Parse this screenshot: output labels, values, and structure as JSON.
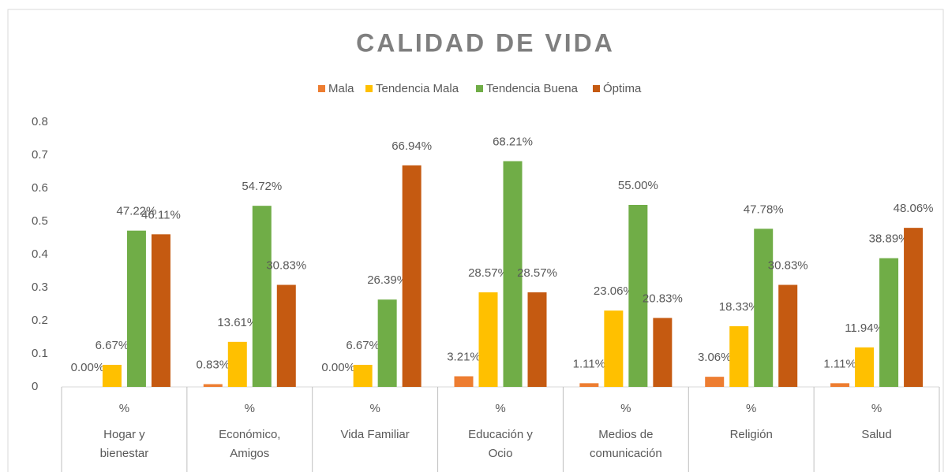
{
  "chart_data": {
    "type": "bar",
    "title": "CALIDAD DE VIDA",
    "categories": [
      "Hogar y bienestar",
      "Económico, Amigos",
      "Vida Familiar",
      "Educación y Ocio",
      "Medios de comunicación",
      "Religión",
      "Salud"
    ],
    "category_sublabels": [
      "%",
      "%",
      "%",
      "%",
      "%",
      "%",
      "%"
    ],
    "series": [
      {
        "name": "Mala",
        "color": "#ed7d31",
        "values": [
          0,
          0.0083,
          0,
          0.0321,
          0.0111,
          0.0306,
          0.0111
        ],
        "value_labels": [
          "0.00%",
          "0.83%",
          "0.00%",
          "3.21%",
          "1.11%",
          "3.06%",
          "1.11%"
        ]
      },
      {
        "name": "Tendencia Mala",
        "color": "#ffc000",
        "values": [
          0.0667,
          0.1361,
          0.0667,
          0.2857,
          0.2306,
          0.1833,
          0.1194
        ],
        "value_labels": [
          "6.67%",
          "13.61%",
          "6.67%",
          "28.57%",
          "23.06%",
          "18.33%",
          "11.94%"
        ]
      },
      {
        "name": "Tendencia Buena",
        "color": "#70ad47",
        "values": [
          0.4722,
          0.5472,
          0.2639,
          0.6821,
          0.55,
          0.4778,
          0.3889
        ],
        "value_labels": [
          "47.22%",
          "54.72%",
          "26.39%",
          "68.21%",
          "55.00%",
          "47.78%",
          "38.89%"
        ]
      },
      {
        "name": "Óptima",
        "color": "#c55a11",
        "values": [
          0.4611,
          0.3083,
          0.6694,
          0.2857,
          0.2083,
          0.3083,
          0.4806
        ],
        "value_labels": [
          "46.11%",
          "30.83%",
          "66.94%",
          "28.57%",
          "20.83%",
          "30.83%",
          "48.06%"
        ]
      }
    ],
    "ylim": [
      0,
      0.8
    ],
    "yticks": [
      0,
      0.1,
      0.2,
      0.3,
      0.4,
      0.5,
      0.6,
      0.7,
      0.8
    ],
    "grid": false,
    "legend": "top"
  }
}
